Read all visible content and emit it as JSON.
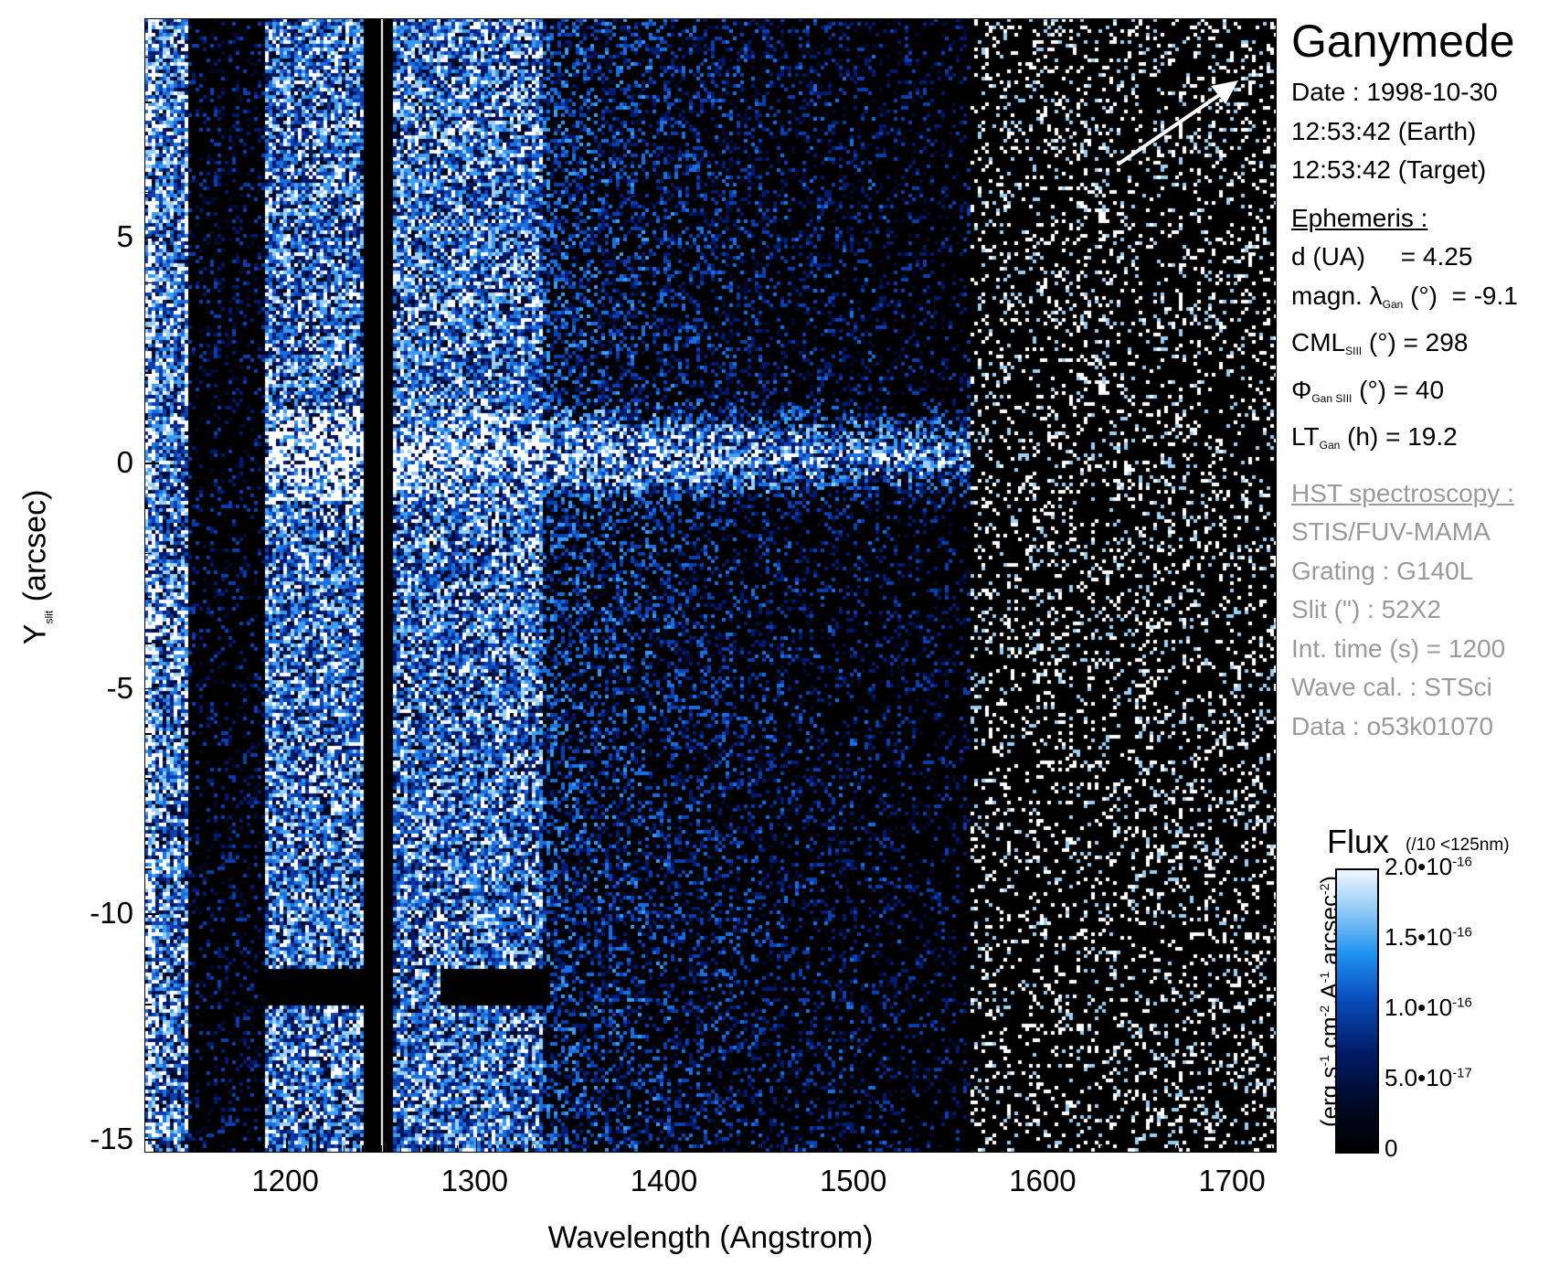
{
  "chart_data": {
    "type": "heatmap",
    "title": "Ganymede",
    "xlabel": "Wavelength (Angstrom)",
    "ylabel_main": "Y",
    "ylabel_sub": "slit",
    "ylabel_unit": "(arcsec)",
    "xlim": [
      1125,
      1723
    ],
    "ylim": [
      -15.3,
      9.85
    ],
    "xticks": [
      1200,
      1300,
      1400,
      1500,
      1600,
      1700
    ],
    "yticks": [
      5,
      0,
      -5,
      -10,
      -15
    ],
    "xtick_labels": [
      "1200",
      "1300",
      "1400",
      "1500",
      "1600",
      "1700"
    ],
    "ytick_labels": [
      "5",
      "0",
      "-5",
      "-10",
      "-15"
    ],
    "emission_bands_angstrom": [
      [
        1130,
        1145
      ],
      [
        1190,
        1240
      ],
      [
        1255,
        1335
      ]
    ],
    "bright_line_y_arcsec": 0,
    "colorbar": {
      "title": "Flux",
      "note": "(/10 <125nm)",
      "unit": "(erg.s-1.cm-2.A-1.arcsec-2)",
      "range": [
        0,
        2e-16
      ],
      "ticks": [
        {
          "mant": "2.0•10",
          "exp": "-16"
        },
        {
          "mant": "1.5•10",
          "exp": "-16"
        },
        {
          "mant": "1.0•10",
          "exp": "-16"
        },
        {
          "mant": "5.0•10",
          "exp": "-17"
        },
        {
          "mant": "0",
          "exp": ""
        }
      ]
    }
  },
  "info": {
    "date": "Date : 1998-10-30",
    "time_earth": "12:53:42 (Earth)",
    "time_target": "12:53:42 (Target)",
    "ephemeris_header": "Ephemeris :",
    "d": "d (UA)     = 4.25",
    "magn_pre": "magn. λ",
    "magn_sub": "Gan",
    "magn_post": " (°)  = -9.1",
    "cml_pre": "CML",
    "cml_sub": "SIII",
    "cml_post": " (°) = 298",
    "phi_pre": "Φ",
    "phi_sub": "Gan SIII",
    "phi_post": " (°) = 40",
    "lt_pre": "LT",
    "lt_sub": "Gan",
    "lt_post": " (h) = 19.2",
    "hst_header": "HST spectroscopy :",
    "instrument": "STIS/FUV-MAMA",
    "grating": "Grating : G140L",
    "slit": "Slit (\") : 52X2",
    "int_time": "Int. time (s) = 1200",
    "wave_cal": "Wave cal. : STSci",
    "data_id": "Data : o53k01070"
  }
}
